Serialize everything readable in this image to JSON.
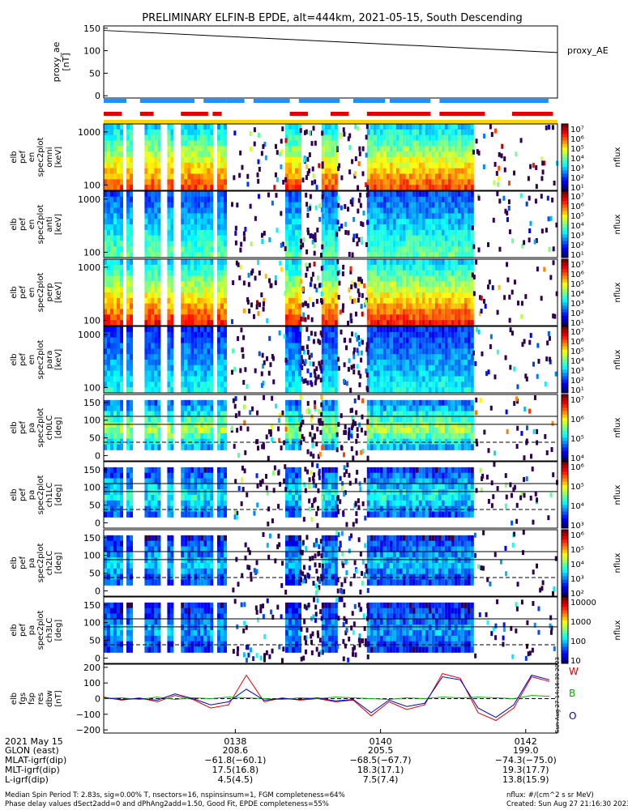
{
  "chart_data": {
    "type": "heatmap",
    "title": "PRELIMINARY ELFIN-B EPDE, alt=444km, 2021-05-15, South Descending",
    "time_ticks": [
      "0138",
      "0140",
      "0142"
    ],
    "proxy_ae": {
      "ylabel": "proxy_ae\n[nT]",
      "legend": "proxy_AE",
      "ylim": [
        -5,
        155
      ],
      "yticks": [
        "150",
        "100",
        "50",
        "0"
      ],
      "series": [
        {
          "x": [
            "01:36:13",
            "01:42:30"
          ],
          "y": [
            145,
            96
          ]
        }
      ]
    },
    "bars": {
      "blue_segments": [
        [
          0.0,
          0.05
        ],
        [
          0.08,
          0.2
        ],
        [
          0.22,
          0.27
        ],
        [
          0.27,
          0.31
        ],
        [
          0.33,
          0.41
        ],
        [
          0.43,
          0.52
        ],
        [
          0.55,
          0.62
        ],
        [
          0.63,
          0.72
        ],
        [
          0.74,
          0.98
        ]
      ],
      "red_segments": [
        [
          0.0,
          0.04
        ],
        [
          0.08,
          0.11
        ],
        [
          0.17,
          0.23
        ],
        [
          0.24,
          0.26
        ],
        [
          0.41,
          0.45
        ],
        [
          0.5,
          0.54
        ],
        [
          0.58,
          0.72
        ],
        [
          0.74,
          0.84
        ],
        [
          0.9,
          0.99
        ]
      ],
      "colors": {
        "blue": "#1e90ff",
        "red": "#e00000",
        "yellow": "#ffd700"
      }
    },
    "panels": [
      {
        "ylabel": [
          "elb",
          "pef",
          "en",
          "spec2plot",
          "omni",
          "[keV]"
        ],
        "yticks": [
          "1000",
          "100"
        ],
        "cbar_ticks": [
          "10⁷",
          "10⁶",
          "10⁵",
          "10⁴",
          "10³",
          "10²",
          "10¹"
        ],
        "cbar_label": "nflux",
        "kind": "energy",
        "level": 0.95
      },
      {
        "ylabel": [
          "elb",
          "pef",
          "en",
          "spec2plot",
          "anti",
          "[keV]"
        ],
        "yticks": [
          "1000",
          "100"
        ],
        "cbar_ticks": [
          "10⁷",
          "10⁶",
          "10⁵",
          "10⁴",
          "10³",
          "10²",
          "10¹"
        ],
        "cbar_label": "nflux",
        "kind": "energy",
        "level": 0.55
      },
      {
        "ylabel": [
          "elb",
          "pef",
          "en",
          "spec2plot",
          "perp",
          "[keV]"
        ],
        "yticks": [
          "1000",
          "100"
        ],
        "cbar_ticks": [
          "10⁷",
          "10⁶",
          "10⁵",
          "10⁴",
          "10³",
          "10²",
          "10¹"
        ],
        "cbar_label": "nflux",
        "kind": "energy",
        "level": 1.0
      },
      {
        "ylabel": [
          "elb",
          "pef",
          "en",
          "spec2plot",
          "para",
          "[keV]"
        ],
        "yticks": [
          "1000",
          "100"
        ],
        "cbar_ticks": [
          "10⁷",
          "10⁶",
          "10⁵",
          "10⁴",
          "10³",
          "10²",
          "10¹"
        ],
        "cbar_label": "nflux",
        "kind": "energy",
        "level": 0.45
      },
      {
        "ylabel": [
          "elb",
          "pef",
          "pa",
          "spec2plot",
          "ch0LC",
          "[deg]"
        ],
        "yticks": [
          "150",
          "100",
          "50",
          "0"
        ],
        "cbar_ticks": [
          "10⁷",
          "10⁶",
          "10⁵",
          "10⁴"
        ],
        "cbar_label": "nflux",
        "kind": "pitch",
        "level": 0.85
      },
      {
        "ylabel": [
          "elb",
          "pef",
          "pa",
          "spec2plot",
          "ch1LC",
          "[deg]"
        ],
        "yticks": [
          "150",
          "100",
          "50",
          "0"
        ],
        "cbar_ticks": [
          "10⁶",
          "10⁵",
          "10⁴",
          "10³"
        ],
        "cbar_label": "nflux",
        "kind": "pitch",
        "level": 0.6
      },
      {
        "ylabel": [
          "elb",
          "pef",
          "pa",
          "spec2plot",
          "ch2LC",
          "[deg]"
        ],
        "yticks": [
          "150",
          "100",
          "50",
          "0"
        ],
        "cbar_ticks": [
          "10⁶",
          "10⁵",
          "10⁴",
          "10³",
          "10²"
        ],
        "cbar_label": "nflux",
        "kind": "pitch",
        "level": 0.5
      },
      {
        "ylabel": [
          "elb",
          "pef",
          "pa",
          "spec2plot",
          "ch3LC",
          "[deg]"
        ],
        "yticks": [
          "150",
          "100",
          "50",
          "0"
        ],
        "cbar_ticks": [
          "10000",
          "1000",
          "100",
          "10"
        ],
        "cbar_label": "nflux",
        "kind": "pitch",
        "level": 0.45
      }
    ],
    "fgs": {
      "ylabel": [
        "elb",
        "fgs",
        "fsp",
        "res",
        "dbw",
        "[nT]"
      ],
      "yticks": [
        "200",
        "100",
        "0",
        "−100",
        "−200"
      ],
      "ylim": [
        -220,
        220
      ],
      "legend": [
        "W",
        "B",
        "O"
      ],
      "colors": [
        "#e00000",
        "#00b000",
        "#0000cc"
      ],
      "side_text": "Sun Aug 27 14:16:30 2023",
      "x": [
        0.0,
        0.04,
        0.08,
        0.12,
        0.16,
        0.2,
        0.24,
        0.28,
        0.32,
        0.36,
        0.4,
        0.44,
        0.48,
        0.52,
        0.56,
        0.6,
        0.64,
        0.68,
        0.72,
        0.76,
        0.8,
        0.84,
        0.88,
        0.92,
        0.96,
        1.0
      ],
      "series": [
        {
          "values": [
            10,
            -10,
            5,
            -20,
            20,
            -5,
            -60,
            -40,
            150,
            -20,
            5,
            -10,
            0,
            -20,
            -10,
            -110,
            -20,
            -70,
            -40,
            160,
            130,
            -90,
            -140,
            -60,
            140,
            110
          ]
        },
        {
          "values": [
            0,
            5,
            -5,
            10,
            -5,
            5,
            0,
            10,
            5,
            0,
            -5,
            5,
            0,
            10,
            5,
            0,
            -5,
            5,
            0,
            10,
            5,
            10,
            5,
            0,
            20,
            15
          ]
        },
        {
          "values": [
            5,
            -5,
            0,
            -10,
            30,
            0,
            -40,
            -20,
            60,
            -10,
            0,
            -5,
            5,
            -15,
            -5,
            -90,
            -10,
            -50,
            -30,
            140,
            120,
            -60,
            -120,
            -40,
            150,
            120
          ]
        }
      ]
    },
    "ephemeris": {
      "labels": [
        "2021 May 15",
        "GLON (east)",
        "MLAT-igrf(dip)",
        "MLT-igrf(dip)",
        "L-igrf(dip)"
      ],
      "columns": [
        [
          "0138",
          "208.6",
          "−61.8(−60.1)",
          "17.5(16.8)",
          "4.5(4.5)"
        ],
        [
          "0140",
          "205.5",
          "−68.5(−67.7)",
          "18.3(17.1)",
          "7.5(7.4)"
        ],
        [
          "0142",
          "199.0",
          "−74.3(−75.0)",
          "19.3(17.7)",
          "13.8(15.9)"
        ]
      ]
    }
  },
  "footer": {
    "line1": "Median Spin Period T: 2.83s, sig=0.00% T, nsectors=16, nspinsinsum=1, FGM completeness=64%",
    "line2": "Phase delay values dSect2add=0 and dPhAng2add=1.50, Good Fit, EPDE completeness=55%",
    "right1": "nflux: #/(cm^2 s sr MeV)",
    "right2": "Created: Sun Aug 27 21:16:30 2023"
  }
}
